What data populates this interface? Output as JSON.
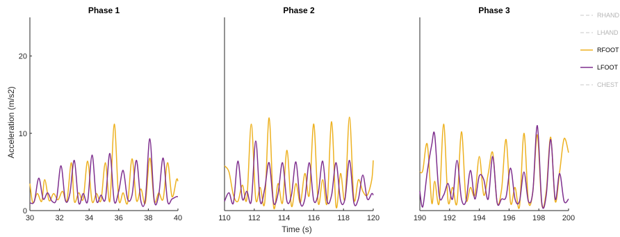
{
  "chart_data": {
    "type": "line",
    "ylabel": "Acceleration (m/s2)",
    "xlabel": "Time (s)",
    "ylim": [
      0,
      25
    ],
    "yticks": [
      0,
      10,
      20
    ],
    "ytick_labels": [
      "0",
      "10",
      "20"
    ],
    "grid": false,
    "legend_placement": "right",
    "legend": [
      {
        "name": "RHAND",
        "color": "#c8c8c8",
        "dashed": true,
        "active": false
      },
      {
        "name": "LHAND",
        "color": "#c8c8c8",
        "dashed": true,
        "active": false
      },
      {
        "name": "RFOOT",
        "color": "#edb120",
        "dashed": false,
        "active": true
      },
      {
        "name": "LFOOT",
        "color": "#7e2f8e",
        "dashed": false,
        "active": true
      },
      {
        "name": "CHEST",
        "color": "#c8c8c8",
        "dashed": true,
        "active": false
      }
    ],
    "panels": [
      {
        "title": "Phase 1",
        "xlim": [
          30,
          40
        ],
        "xticks": [
          30,
          32,
          34,
          36,
          38,
          40
        ],
        "xtick_labels": [
          "30",
          "32",
          "34",
          "36",
          "38",
          "40"
        ],
        "series": [
          {
            "name": "RFOOT",
            "x": [
              30,
              30.2,
              30.5,
              30.8,
              31,
              31.3,
              31.6,
              31.9,
              32.2,
              32.5,
              32.8,
              33,
              33.3,
              33.6,
              33.9,
              34.2,
              34.5,
              34.8,
              35.1,
              35.4,
              35.7,
              36,
              36.3,
              36.6,
              36.9,
              37.2,
              37.5,
              37.8,
              38.1,
              38.4,
              38.7,
              39,
              39.3,
              39.6,
              39.9,
              40
            ],
            "y": [
              3.5,
              1.0,
              2.2,
              1.2,
              4.0,
              1.3,
              2.2,
              1.4,
              2.5,
              1.3,
              6.2,
              1.2,
              2.3,
              1.5,
              6.4,
              1.2,
              2.2,
              1.3,
              6.2,
              1.2,
              11.2,
              1.5,
              2.3,
              1.0,
              6.7,
              1.3,
              2.8,
              1.0,
              6.8,
              1.2,
              2.3,
              1.5,
              6.2,
              1.8,
              4.0,
              3.8
            ]
          },
          {
            "name": "LFOOT",
            "x": [
              30,
              30.3,
              30.6,
              30.9,
              31.2,
              31.5,
              31.8,
              32.1,
              32.4,
              32.7,
              33,
              33.3,
              33.6,
              33.9,
              34.2,
              34.5,
              34.8,
              35.1,
              35.4,
              35.7,
              36,
              36.3,
              36.6,
              36.9,
              37.2,
              37.5,
              37.8,
              38.1,
              38.4,
              38.7,
              39,
              39.3,
              39.6,
              39.9,
              40
            ],
            "y": [
              1.0,
              1.2,
              4.2,
              1.5,
              2.3,
              1.2,
              1.5,
              5.8,
              1.3,
              2.2,
              6.5,
              1.0,
              2.2,
              1.2,
              7.2,
              1.3,
              2.0,
              1.5,
              7.4,
              1.2,
              2.5,
              5.2,
              1.5,
              2.0,
              6.5,
              1.2,
              1.5,
              9.3,
              1.3,
              2.0,
              6.8,
              1.2,
              1.5,
              1.8,
              1.8
            ]
          }
        ]
      },
      {
        "title": "Phase 2",
        "xlim": [
          110,
          120
        ],
        "xticks": [
          110,
          112,
          114,
          116,
          118,
          120
        ],
        "xtick_labels": [
          "110",
          "112",
          "114",
          "116",
          "118",
          "120"
        ],
        "series": [
          {
            "name": "RFOOT",
            "x": [
              110,
              110.3,
              110.6,
              110.9,
              111.2,
              111.5,
              111.8,
              112.1,
              112.4,
              112.7,
              113,
              113.3,
              113.6,
              113.9,
              114.2,
              114.5,
              114.8,
              115.1,
              115.4,
              115.7,
              116,
              116.3,
              116.6,
              116.9,
              117.2,
              117.5,
              117.8,
              118.1,
              118.4,
              118.7,
              119,
              119.3,
              119.6,
              119.9,
              120
            ],
            "y": [
              5.8,
              5.0,
              2.0,
              1.2,
              3.3,
              1.5,
              11.2,
              1.5,
              3.0,
              1.0,
              12.0,
              0.5,
              3.5,
              1.0,
              7.8,
              0.6,
              3.5,
              1.0,
              4.8,
              2.0,
              11.2,
              1.0,
              4.0,
              1.0,
              11.5,
              0.5,
              4.8,
              1.5,
              12.1,
              1.5,
              4.0,
              2.5,
              2.0,
              4.0,
              6.5
            ]
          },
          {
            "name": "LFOOT",
            "x": [
              110,
              110.3,
              110.6,
              110.9,
              111.2,
              111.5,
              111.8,
              112.1,
              112.4,
              112.7,
              113,
              113.3,
              113.6,
              113.9,
              114.2,
              114.5,
              114.8,
              115.1,
              115.4,
              115.7,
              116,
              116.3,
              116.6,
              116.9,
              117.2,
              117.5,
              117.8,
              118.1,
              118.4,
              118.7,
              119,
              119.3,
              119.6,
              119.9,
              120
            ],
            "y": [
              1.2,
              2.3,
              1.0,
              6.4,
              1.5,
              2.5,
              1.2,
              9.0,
              1.2,
              2.8,
              6.2,
              1.0,
              2.2,
              6.2,
              1.2,
              2.0,
              6.3,
              1.0,
              1.5,
              6.2,
              1.3,
              2.2,
              6.4,
              1.2,
              2.0,
              6.2,
              1.3,
              1.5,
              6.5,
              1.0,
              1.5,
              4.6,
              1.5,
              2.2,
              2.0
            ]
          }
        ]
      },
      {
        "title": "Phase 3",
        "xlim": [
          190,
          200
        ],
        "xticks": [
          190,
          192,
          194,
          196,
          198,
          200
        ],
        "xtick_labels": [
          "190",
          "192",
          "194",
          "196",
          "198",
          "200"
        ],
        "series": [
          {
            "name": "RFOOT",
            "x": [
              190,
              190.2,
              190.5,
              190.8,
              191,
              191.3,
              191.6,
              191.9,
              192.2,
              192.5,
              192.8,
              193.1,
              193.4,
              193.7,
              194,
              194.3,
              194.6,
              194.9,
              195.2,
              195.5,
              195.8,
              196.1,
              196.4,
              196.7,
              197,
              197.3,
              197.6,
              197.9,
              198.2,
              198.5,
              198.8,
              199.1,
              199.4,
              199.7,
              200
            ],
            "y": [
              5.0,
              5.2,
              8.6,
              1.0,
              3.8,
              1.0,
              11.2,
              1.2,
              3.0,
              1.0,
              10.2,
              1.5,
              3.0,
              2.0,
              7.0,
              2.0,
              4.8,
              7.5,
              1.0,
              2.8,
              9.2,
              1.0,
              3.0,
              0.5,
              10.0,
              1.2,
              2.5,
              9.8,
              0.8,
              2.5,
              9.5,
              1.2,
              5.0,
              9.3,
              7.5
            ]
          },
          {
            "name": "LFOOT",
            "x": [
              190,
              190.2,
              190.5,
              190.8,
              191,
              191.3,
              191.6,
              191.9,
              192.2,
              192.5,
              192.8,
              193.1,
              193.4,
              193.7,
              194,
              194.3,
              194.6,
              194.9,
              195.2,
              195.5,
              195.8,
              196.1,
              196.4,
              196.7,
              197,
              197.3,
              197.6,
              197.9,
              198.2,
              198.5,
              198.8,
              199.1,
              199.4,
              199.7,
              200
            ],
            "y": [
              2.5,
              0.5,
              5.0,
              8.5,
              9.8,
              2.0,
              2.0,
              3.5,
              1.5,
              6.5,
              1.5,
              1.2,
              5.2,
              1.5,
              4.5,
              4.0,
              1.5,
              7.0,
              1.0,
              1.5,
              1.8,
              5.5,
              1.5,
              1.2,
              5.0,
              1.2,
              2.5,
              11.0,
              1.0,
              2.0,
              9.2,
              1.5,
              4.8,
              1.2,
              1.5
            ]
          }
        ]
      }
    ]
  }
}
